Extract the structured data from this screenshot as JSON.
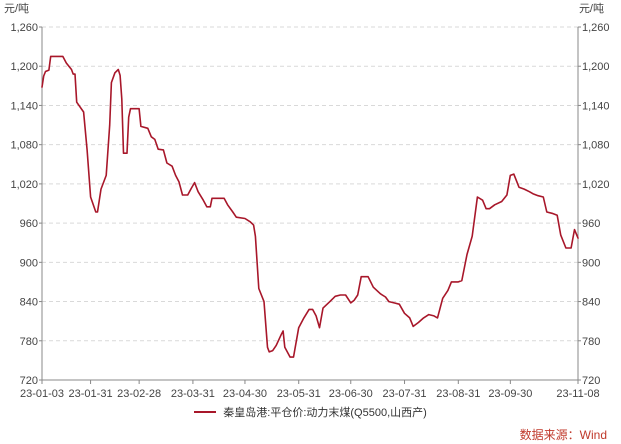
{
  "source": "数据来源：Wind",
  "chart_data": {
    "type": "line",
    "unit_left": "元/吨",
    "unit_right": "元/吨",
    "ylim": [
      720,
      1260
    ],
    "yticks": [
      720,
      780,
      840,
      900,
      960,
      1020,
      1080,
      1140,
      1200,
      1260
    ],
    "ytick_labels": [
      "720",
      "780",
      "840",
      "900",
      "960",
      "1,020",
      "1,080",
      "1,140",
      "1,200",
      "1,260"
    ],
    "xlim": [
      "2023-01-03",
      "2023-11-08"
    ],
    "xticks": [
      "2023-01-03",
      "2023-01-31",
      "2023-02-28",
      "2023-03-31",
      "2023-04-30",
      "2023-05-31",
      "2023-06-30",
      "2023-07-31",
      "2023-08-31",
      "2023-09-30",
      "2023-11-08"
    ],
    "xtick_labels": [
      "23-01-03",
      "23-01-31",
      "23-02-28",
      "23-03-31",
      "23-04-30",
      "23-05-31",
      "23-06-30",
      "23-07-31",
      "23-08-31",
      "23-09-30",
      "23-11-08"
    ],
    "grid": "horizontal dashed",
    "legend_position": "bottom",
    "color": "#a8172a",
    "series": [
      {
        "name": "秦皇岛港:平仓价:动力末煤(Q5500,山西产)",
        "points": [
          [
            "2023-01-03",
            1168
          ],
          [
            "2023-01-04",
            1185
          ],
          [
            "2023-01-05",
            1192
          ],
          [
            "2023-01-07",
            1194
          ],
          [
            "2023-01-08",
            1215
          ],
          [
            "2023-01-15",
            1215
          ],
          [
            "2023-01-17",
            1205
          ],
          [
            "2023-01-20",
            1195
          ],
          [
            "2023-01-21",
            1188
          ],
          [
            "2023-01-22",
            1188
          ],
          [
            "2023-01-23",
            1145
          ],
          [
            "2023-01-27",
            1130
          ],
          [
            "2023-01-29",
            1072
          ],
          [
            "2023-01-31",
            1000
          ],
          [
            "2023-02-03",
            977
          ],
          [
            "2023-02-04",
            977
          ],
          [
            "2023-02-06",
            1012
          ],
          [
            "2023-02-09",
            1033
          ],
          [
            "2023-02-11",
            1110
          ],
          [
            "2023-02-12",
            1175
          ],
          [
            "2023-02-14",
            1190
          ],
          [
            "2023-02-16",
            1195
          ],
          [
            "2023-02-17",
            1186
          ],
          [
            "2023-02-18",
            1150
          ],
          [
            "2023-02-19",
            1067
          ],
          [
            "2023-02-21",
            1067
          ],
          [
            "2023-02-22",
            1122
          ],
          [
            "2023-02-23",
            1135
          ],
          [
            "2023-02-28",
            1135
          ],
          [
            "2023-03-01",
            1108
          ],
          [
            "2023-03-05",
            1105
          ],
          [
            "2023-03-07",
            1092
          ],
          [
            "2023-03-09",
            1088
          ],
          [
            "2023-03-11",
            1073
          ],
          [
            "2023-03-14",
            1072
          ],
          [
            "2023-03-16",
            1052
          ],
          [
            "2023-03-19",
            1047
          ],
          [
            "2023-03-21",
            1033
          ],
          [
            "2023-03-23",
            1023
          ],
          [
            "2023-03-25",
            1003
          ],
          [
            "2023-03-28",
            1003
          ],
          [
            "2023-03-30",
            1013
          ],
          [
            "2023-04-01",
            1022
          ],
          [
            "2023-04-03",
            1008
          ],
          [
            "2023-04-06",
            995
          ],
          [
            "2023-04-08",
            985
          ],
          [
            "2023-04-10",
            985
          ],
          [
            "2023-04-11",
            998
          ],
          [
            "2023-04-18",
            998
          ],
          [
            "2023-04-20",
            988
          ],
          [
            "2023-04-23",
            977
          ],
          [
            "2023-04-25",
            969
          ],
          [
            "2023-04-30",
            967
          ],
          [
            "2023-05-03",
            962
          ],
          [
            "2023-05-05",
            957
          ],
          [
            "2023-05-06",
            940
          ],
          [
            "2023-05-08",
            860
          ],
          [
            "2023-05-11",
            840
          ],
          [
            "2023-05-13",
            770
          ],
          [
            "2023-05-14",
            763
          ],
          [
            "2023-05-16",
            765
          ],
          [
            "2023-05-18",
            773
          ],
          [
            "2023-05-21",
            790
          ],
          [
            "2023-05-22",
            795
          ],
          [
            "2023-05-23",
            770
          ],
          [
            "2023-05-26",
            755
          ],
          [
            "2023-05-28",
            755
          ],
          [
            "2023-05-31",
            800
          ],
          [
            "2023-06-03",
            815
          ],
          [
            "2023-06-06",
            828
          ],
          [
            "2023-06-08",
            828
          ],
          [
            "2023-06-10",
            818
          ],
          [
            "2023-06-12",
            800
          ],
          [
            "2023-06-14",
            830
          ],
          [
            "2023-06-18",
            840
          ],
          [
            "2023-06-21",
            848
          ],
          [
            "2023-06-24",
            850
          ],
          [
            "2023-06-27",
            850
          ],
          [
            "2023-06-30",
            838
          ],
          [
            "2023-07-02",
            842
          ],
          [
            "2023-07-04",
            850
          ],
          [
            "2023-07-06",
            878
          ],
          [
            "2023-07-10",
            878
          ],
          [
            "2023-07-13",
            862
          ],
          [
            "2023-07-17",
            852
          ],
          [
            "2023-07-20",
            847
          ],
          [
            "2023-07-22",
            840
          ],
          [
            "2023-07-25",
            838
          ],
          [
            "2023-07-28",
            836
          ],
          [
            "2023-07-31",
            822
          ],
          [
            "2023-08-03",
            815
          ],
          [
            "2023-08-05",
            802
          ],
          [
            "2023-08-08",
            808
          ],
          [
            "2023-08-11",
            815
          ],
          [
            "2023-08-14",
            820
          ],
          [
            "2023-08-17",
            818
          ],
          [
            "2023-08-19",
            815
          ],
          [
            "2023-08-22",
            845
          ],
          [
            "2023-08-25",
            857
          ],
          [
            "2023-08-27",
            870
          ],
          [
            "2023-08-31",
            870
          ],
          [
            "2023-09-02",
            872
          ],
          [
            "2023-09-05",
            912
          ],
          [
            "2023-09-08",
            940
          ],
          [
            "2023-09-11",
            1000
          ],
          [
            "2023-09-14",
            995
          ],
          [
            "2023-09-16",
            982
          ],
          [
            "2023-09-18",
            982
          ],
          [
            "2023-09-21",
            988
          ],
          [
            "2023-09-25",
            993
          ],
          [
            "2023-09-28",
            1003
          ],
          [
            "2023-09-30",
            1033
          ],
          [
            "2023-10-02",
            1035
          ],
          [
            "2023-10-05",
            1015
          ],
          [
            "2023-10-08",
            1012
          ],
          [
            "2023-10-11",
            1008
          ],
          [
            "2023-10-13",
            1005
          ],
          [
            "2023-10-16",
            1002
          ],
          [
            "2023-10-19",
            1000
          ],
          [
            "2023-10-21",
            977
          ],
          [
            "2023-10-24",
            975
          ],
          [
            "2023-10-27",
            972
          ],
          [
            "2023-10-29",
            942
          ],
          [
            "2023-11-01",
            922
          ],
          [
            "2023-11-04",
            922
          ],
          [
            "2023-11-06",
            950
          ],
          [
            "2023-11-08",
            937
          ]
        ]
      }
    ]
  }
}
